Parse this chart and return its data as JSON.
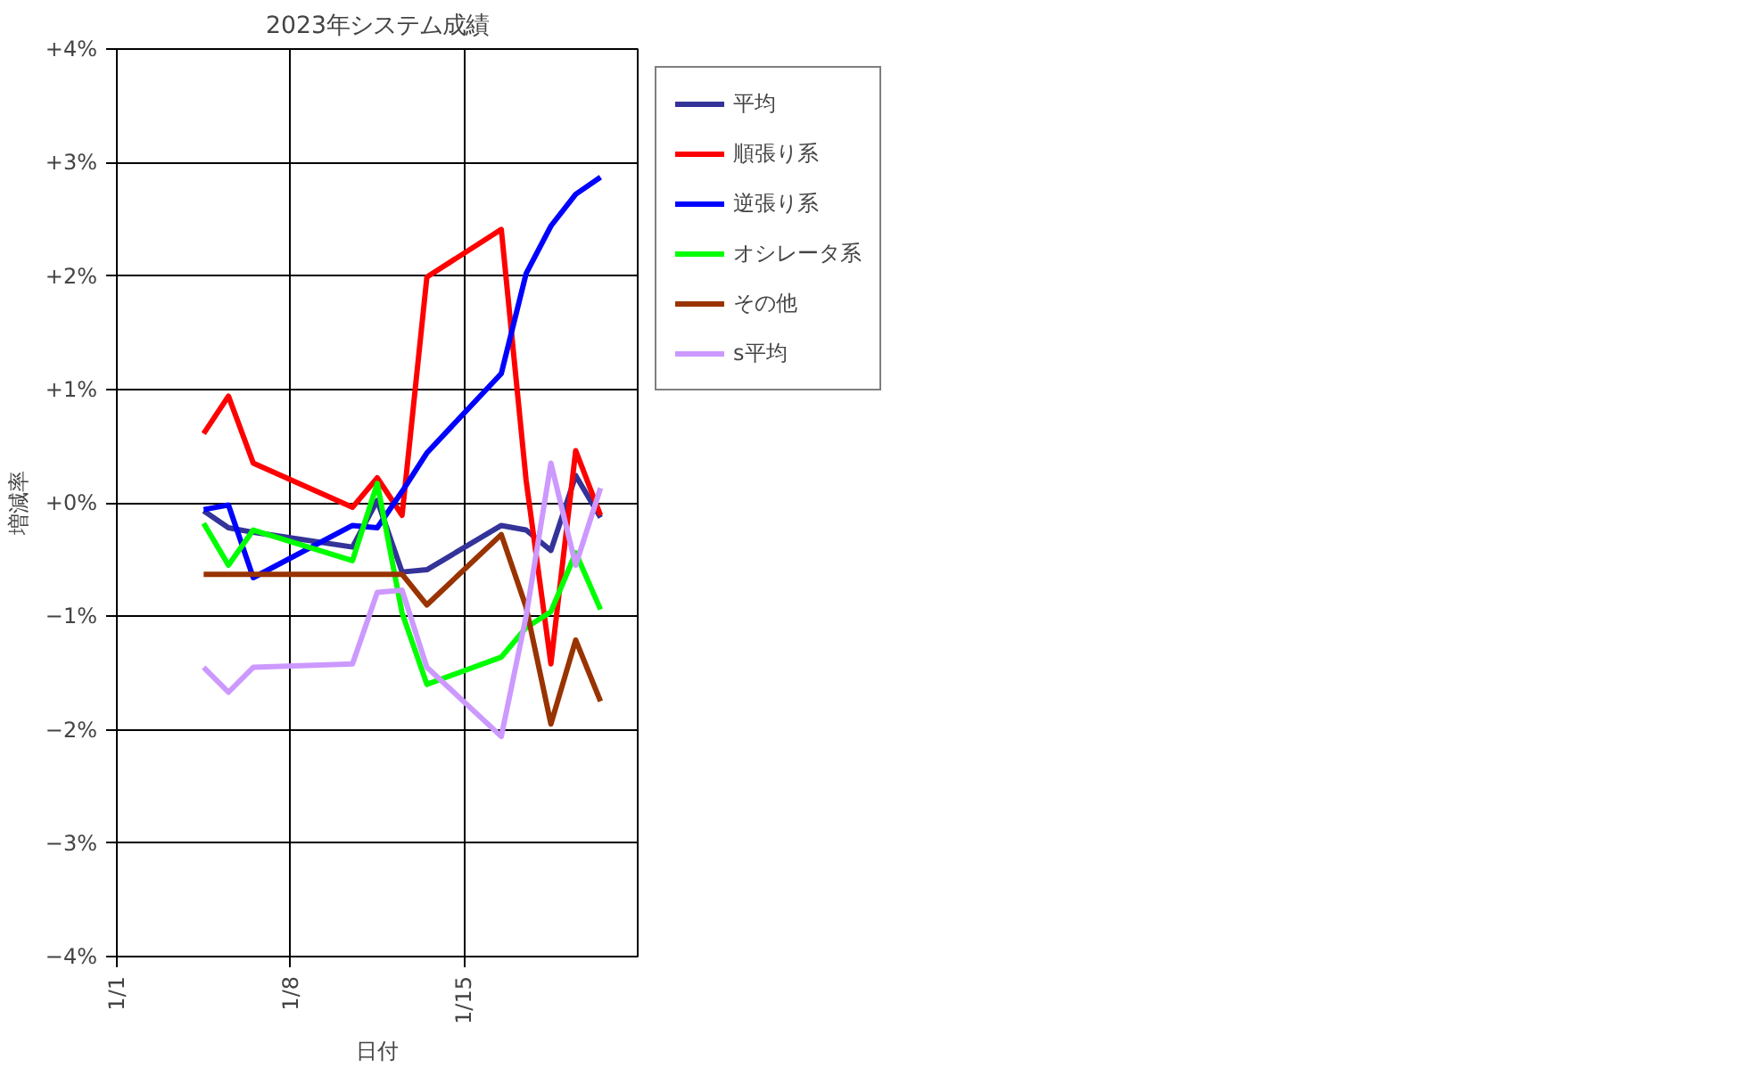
{
  "chart_data": {
    "type": "line",
    "title": "2023年システム成績",
    "xlabel": "日付",
    "ylabel": "増減率",
    "x": [
      "2023-01-04T12:00",
      "2023-01-05T12:00",
      "2023-01-06T12:00",
      "2023-01-10T12:00",
      "2023-01-11T12:00",
      "2023-01-12T12:00",
      "2023-01-13T12:00",
      "2023-01-16T12:00",
      "2023-01-17T12:00",
      "2023-01-18T12:00",
      "2023-01-19T12:00",
      "2023-01-20T12:00"
    ],
    "series": [
      {
        "name": "平均",
        "color": "#333399",
        "values": [
          -0.07,
          -0.22,
          -0.26,
          -0.39,
          0.02,
          -0.61,
          -0.59,
          -0.2,
          -0.24,
          -0.42,
          0.24,
          -0.13
        ]
      },
      {
        "name": "順張り系",
        "color": "#ff0000",
        "values": [
          0.61,
          0.94,
          0.35,
          -0.04,
          0.22,
          -0.11,
          1.99,
          2.41,
          0.2,
          -1.42,
          0.46,
          -0.11
        ]
      },
      {
        "name": "逆張り系",
        "color": "#0000ff",
        "values": [
          -0.06,
          -0.02,
          -0.66,
          -0.2,
          -0.22,
          0.1,
          0.44,
          1.14,
          2.02,
          2.44,
          2.72,
          2.87
        ]
      },
      {
        "name": "オシレータ系",
        "color": "#00ff00",
        "values": [
          -0.18,
          -0.55,
          -0.24,
          -0.51,
          0.17,
          -0.97,
          -1.6,
          -1.36,
          -1.1,
          -0.96,
          -0.44,
          -0.94
        ]
      },
      {
        "name": "その他",
        "color": "#993300",
        "values": [
          -0.63,
          -0.63,
          -0.63,
          -0.63,
          -0.63,
          -0.63,
          -0.9,
          -0.28,
          -0.92,
          -1.95,
          -1.21,
          -1.75
        ]
      },
      {
        "name": "s平均",
        "color": "#cc99ff",
        "values": [
          -1.45,
          -1.67,
          -1.45,
          -1.42,
          -0.79,
          -0.77,
          -1.45,
          -2.06,
          -1.0,
          0.35,
          -0.55,
          0.13
        ]
      }
    ],
    "xlim": [
      "2023-01-01",
      "2023-01-22"
    ],
    "xticks": [
      {
        "value": "2023-01-01",
        "label": "1/1"
      },
      {
        "value": "2023-01-08",
        "label": "1/8"
      },
      {
        "value": "2023-01-15",
        "label": "1/15"
      }
    ],
    "ylim": [
      -4,
      4
    ],
    "yticks": [
      {
        "value": -4,
        "label": "−4%"
      },
      {
        "value": -3,
        "label": "−3%"
      },
      {
        "value": -2,
        "label": "−2%"
      },
      {
        "value": -1,
        "label": "−1%"
      },
      {
        "value": 0,
        "label": "+0%"
      },
      {
        "value": 1,
        "label": "+1%"
      },
      {
        "value": 2,
        "label": "+2%"
      },
      {
        "value": 3,
        "label": "+3%"
      },
      {
        "value": 4,
        "label": "+4%"
      }
    ],
    "grid": true,
    "legend": "right",
    "marker": "none",
    "line_style": "solid"
  }
}
